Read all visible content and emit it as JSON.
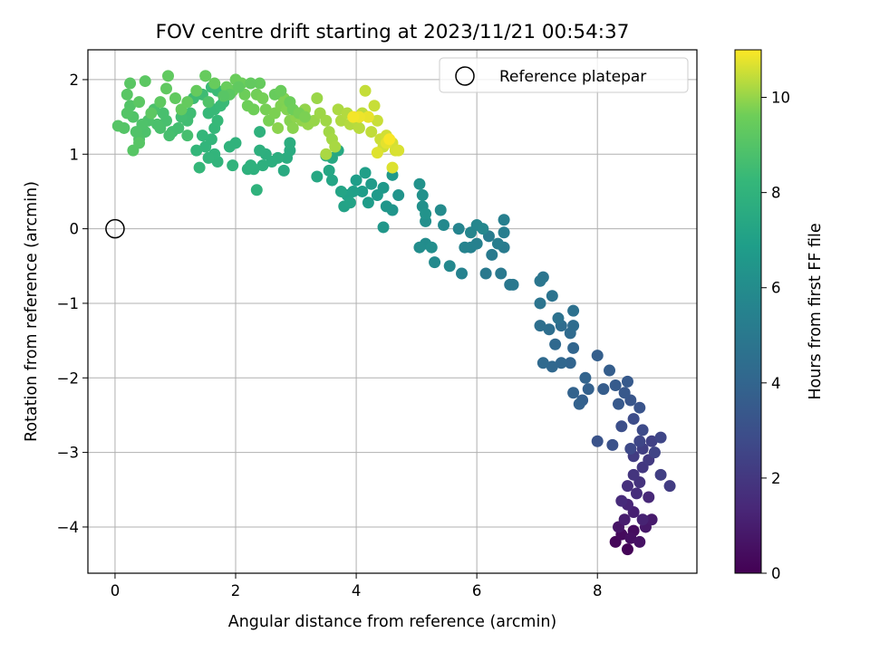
{
  "chart_data": {
    "type": "scatter",
    "title": "FOV centre drift starting at 2023/11/21 00:54:37",
    "xlabel": "Angular distance from reference (arcmin)",
    "ylabel": "Rotation from reference (arcmin)",
    "colorbar_label": "Hours from first FF file",
    "xlim": [
      -0.45,
      9.65
    ],
    "ylim": [
      -4.62,
      2.4
    ],
    "color_range": [
      0,
      11
    ],
    "colormap": "viridis",
    "x_ticks": [
      "0",
      "2",
      "4",
      "6",
      "8"
    ],
    "y_ticks": [
      "2",
      "1",
      "0",
      "−1",
      "−2",
      "−3",
      "−4"
    ],
    "colorbar_ticks": [
      "0",
      "2",
      "4",
      "6",
      "8",
      "10"
    ],
    "grid": true,
    "legend": {
      "position": "top-right",
      "label": "Reference platepar"
    },
    "reference_point": {
      "x": 0,
      "y": 0
    },
    "colors": {
      "grid": "#b0b0b0",
      "axes": "#000000",
      "reference_marker": "#000000"
    },
    "points": [
      [
        8.5,
        -4.3,
        0.1
      ],
      [
        8.3,
        -4.2,
        0.2
      ],
      [
        8.4,
        -4.1,
        0.3
      ],
      [
        8.6,
        -4.05,
        0.4
      ],
      [
        8.55,
        -4.15,
        0.5
      ],
      [
        8.7,
        -4.2,
        0.6
      ],
      [
        8.35,
        -4.0,
        0.7
      ],
      [
        8.8,
        -4.0,
        0.8
      ],
      [
        8.9,
        -3.9,
        0.9
      ],
      [
        8.45,
        -3.9,
        1.0
      ],
      [
        8.6,
        -3.8,
        1.1
      ],
      [
        8.75,
        -3.9,
        1.2
      ],
      [
        8.5,
        -3.7,
        1.3
      ],
      [
        8.85,
        -3.6,
        1.4
      ],
      [
        8.4,
        -3.65,
        1.5
      ],
      [
        8.65,
        -3.55,
        1.6
      ],
      [
        8.5,
        -3.45,
        1.7
      ],
      [
        8.7,
        -3.4,
        1.8
      ],
      [
        8.6,
        -3.3,
        1.9
      ],
      [
        8.75,
        -3.2,
        2.0
      ],
      [
        8.85,
        -3.1,
        2.1
      ],
      [
        8.6,
        -3.05,
        2.2
      ],
      [
        8.75,
        -2.95,
        2.3
      ],
      [
        8.9,
        -2.85,
        2.4
      ],
      [
        9.2,
        -3.45,
        2.2
      ],
      [
        9.05,
        -3.3,
        2.3
      ],
      [
        8.95,
        -3.0,
        2.5
      ],
      [
        8.7,
        -2.85,
        2.6
      ],
      [
        8.55,
        -2.95,
        2.7
      ],
      [
        9.05,
        -2.8,
        2.6
      ],
      [
        8.75,
        -2.7,
        2.8
      ],
      [
        8.6,
        -2.55,
        2.9
      ],
      [
        8.4,
        -2.65,
        3.0
      ],
      [
        8.25,
        -2.9,
        3.1
      ],
      [
        8.0,
        -2.85,
        3.15
      ],
      [
        8.7,
        -2.4,
        3.2
      ],
      [
        8.55,
        -2.3,
        3.3
      ],
      [
        8.45,
        -2.2,
        3.4
      ],
      [
        8.35,
        -2.35,
        3.45
      ],
      [
        8.5,
        -2.05,
        3.5
      ],
      [
        8.3,
        -2.1,
        3.55
      ],
      [
        8.1,
        -2.15,
        3.6
      ],
      [
        8.2,
        -1.9,
        3.65
      ],
      [
        8.0,
        -1.7,
        3.7
      ],
      [
        7.75,
        -2.3,
        3.75
      ],
      [
        7.85,
        -2.15,
        3.8
      ],
      [
        7.7,
        -2.35,
        3.85
      ],
      [
        7.6,
        -2.2,
        3.9
      ],
      [
        7.8,
        -2.0,
        3.95
      ],
      [
        7.55,
        -1.8,
        4.0
      ],
      [
        7.6,
        -1.6,
        4.05
      ],
      [
        7.4,
        -1.8,
        4.1
      ],
      [
        7.25,
        -1.85,
        4.15
      ],
      [
        7.3,
        -1.55,
        4.2
      ],
      [
        7.1,
        -1.8,
        4.25
      ],
      [
        7.55,
        -1.4,
        4.3
      ],
      [
        7.6,
        -1.3,
        4.35
      ],
      [
        7.4,
        -1.3,
        4.4
      ],
      [
        7.2,
        -1.35,
        4.45
      ],
      [
        7.05,
        -1.3,
        4.5
      ],
      [
        7.6,
        -1.1,
        4.6
      ],
      [
        7.35,
        -1.2,
        4.65
      ],
      [
        7.25,
        -0.9,
        4.7
      ],
      [
        7.05,
        -1.0,
        4.75
      ],
      [
        7.1,
        -0.65,
        4.8
      ],
      [
        7.05,
        -0.7,
        4.85
      ],
      [
        6.55,
        -0.75,
        4.9
      ],
      [
        6.6,
        -0.75,
        4.95
      ],
      [
        6.4,
        -0.6,
        5.0
      ],
      [
        6.15,
        -0.6,
        5.05
      ],
      [
        6.25,
        -0.35,
        5.1
      ],
      [
        6.45,
        -0.25,
        5.15
      ],
      [
        6.2,
        -0.1,
        5.2
      ],
      [
        6.35,
        -0.2,
        5.25
      ],
      [
        6.45,
        -0.05,
        5.3
      ],
      [
        6.45,
        0.12,
        5.35
      ],
      [
        6.0,
        -0.2,
        5.4
      ],
      [
        5.9,
        -0.25,
        5.45
      ],
      [
        5.75,
        -0.6,
        5.5
      ],
      [
        5.8,
        -0.25,
        5.55
      ],
      [
        5.7,
        0.0,
        5.6
      ],
      [
        5.9,
        -0.05,
        5.65
      ],
      [
        6.0,
        0.05,
        5.7
      ],
      [
        6.1,
        0.0,
        5.75
      ],
      [
        5.55,
        -0.5,
        5.8
      ],
      [
        5.45,
        0.05,
        5.85
      ],
      [
        5.3,
        -0.45,
        5.9
      ],
      [
        5.4,
        0.25,
        5.95
      ],
      [
        5.15,
        -0.2,
        6.0
      ],
      [
        5.05,
        -0.25,
        6.05
      ],
      [
        5.25,
        -0.25,
        6.1
      ],
      [
        5.15,
        0.1,
        6.15
      ],
      [
        5.1,
        0.3,
        6.2
      ],
      [
        5.1,
        0.45,
        6.25
      ],
      [
        5.05,
        0.6,
        6.3
      ],
      [
        5.15,
        0.2,
        6.35
      ],
      [
        4.7,
        0.45,
        6.4
      ],
      [
        4.6,
        0.25,
        6.45
      ],
      [
        4.5,
        0.3,
        6.5
      ],
      [
        4.45,
        0.02,
        6.55
      ],
      [
        4.6,
        0.72,
        6.6
      ],
      [
        4.45,
        0.55,
        6.65
      ],
      [
        4.35,
        0.45,
        6.7
      ],
      [
        4.25,
        0.6,
        6.75
      ],
      [
        4.2,
        0.35,
        6.8
      ],
      [
        4.1,
        0.5,
        6.85
      ],
      [
        4.0,
        0.65,
        6.9
      ],
      [
        4.15,
        0.75,
        6.95
      ],
      [
        3.95,
        0.5,
        7.0
      ],
      [
        3.85,
        0.45,
        7.05
      ],
      [
        3.8,
        0.3,
        7.1
      ],
      [
        3.9,
        0.35,
        7.15
      ],
      [
        3.75,
        0.5,
        7.2
      ],
      [
        3.6,
        0.65,
        7.25
      ],
      [
        3.55,
        0.78,
        7.3
      ],
      [
        3.35,
        0.7,
        7.35
      ],
      [
        3.7,
        1.05,
        7.4
      ],
      [
        3.6,
        0.95,
        7.45
      ],
      [
        3.5,
        0.98,
        7.5
      ],
      [
        2.8,
        0.78,
        7.55
      ],
      [
        2.9,
        1.05,
        7.6
      ],
      [
        2.85,
        0.95,
        7.65
      ],
      [
        2.9,
        1.15,
        7.7
      ],
      [
        2.7,
        0.95,
        7.72
      ],
      [
        2.6,
        0.9,
        7.75
      ],
      [
        2.5,
        1.0,
        7.78
      ],
      [
        2.4,
        1.05,
        7.8
      ],
      [
        2.45,
        0.85,
        7.82
      ],
      [
        2.3,
        0.8,
        7.85
      ],
      [
        2.2,
        0.8,
        7.88
      ],
      [
        2.25,
        0.85,
        7.9
      ],
      [
        2.4,
        1.3,
        7.92
      ],
      [
        2.35,
        0.52,
        7.95
      ],
      [
        2.0,
        1.15,
        7.98
      ],
      [
        1.9,
        1.1,
        8.0
      ],
      [
        1.95,
        0.85,
        8.02
      ],
      [
        1.7,
        0.9,
        8.05
      ],
      [
        1.65,
        1.0,
        8.08
      ],
      [
        1.55,
        0.95,
        8.1
      ],
      [
        1.5,
        1.1,
        8.12
      ],
      [
        1.6,
        1.2,
        8.15
      ],
      [
        1.45,
        1.25,
        8.18
      ],
      [
        1.35,
        1.05,
        8.2
      ],
      [
        1.4,
        0.82,
        8.22
      ],
      [
        1.65,
        1.35,
        8.25
      ],
      [
        1.7,
        1.45,
        8.28
      ],
      [
        1.55,
        1.55,
        8.3
      ],
      [
        1.65,
        1.6,
        8.32
      ],
      [
        1.75,
        1.65,
        8.35
      ],
      [
        1.8,
        1.7,
        8.38
      ],
      [
        1.7,
        1.85,
        8.4
      ],
      [
        1.6,
        1.9,
        8.42
      ],
      [
        1.5,
        2.05,
        8.45
      ],
      [
        1.45,
        1.8,
        8.48
      ],
      [
        1.3,
        1.75,
        8.5
      ],
      [
        1.25,
        1.55,
        8.52
      ],
      [
        1.2,
        1.45,
        8.55
      ],
      [
        1.1,
        1.5,
        8.58
      ],
      [
        1.05,
        1.35,
        8.6
      ],
      [
        0.95,
        1.3,
        8.62
      ],
      [
        1.2,
        1.25,
        8.65
      ],
      [
        0.9,
        1.25,
        8.68
      ],
      [
        0.85,
        1.45,
        8.7
      ],
      [
        0.8,
        1.55,
        8.72
      ],
      [
        0.75,
        1.35,
        8.75
      ],
      [
        0.7,
        1.4,
        8.78
      ],
      [
        0.65,
        1.6,
        8.8
      ],
      [
        0.55,
        1.45,
        8.82
      ],
      [
        0.5,
        1.3,
        8.85
      ],
      [
        0.45,
        1.4,
        8.88
      ],
      [
        0.4,
        1.2,
        8.9
      ],
      [
        0.35,
        1.3,
        8.92
      ],
      [
        0.3,
        1.5,
        8.95
      ],
      [
        0.25,
        1.65,
        8.98
      ],
      [
        0.2,
        1.55,
        9.0
      ],
      [
        0.15,
        1.35,
        9.02
      ],
      [
        0.05,
        1.38,
        9.05
      ],
      [
        0.3,
        1.05,
        9.08
      ],
      [
        0.4,
        1.15,
        9.1
      ],
      [
        0.2,
        1.8,
        9.12
      ],
      [
        0.25,
        1.95,
        9.15
      ],
      [
        0.4,
        1.7,
        9.18
      ],
      [
        0.5,
        1.98,
        9.2
      ],
      [
        0.6,
        1.55,
        9.22
      ],
      [
        0.75,
        1.7,
        9.25
      ],
      [
        0.85,
        1.88,
        9.28
      ],
      [
        0.88,
        2.05,
        9.3
      ],
      [
        1.0,
        1.75,
        9.32
      ],
      [
        1.1,
        1.6,
        9.35
      ],
      [
        1.2,
        1.7,
        9.38
      ],
      [
        1.35,
        1.85,
        9.4
      ],
      [
        1.5,
        2.05,
        9.42
      ],
      [
        1.65,
        1.95,
        9.45
      ],
      [
        1.85,
        1.9,
        9.48
      ],
      [
        1.95,
        1.85,
        9.5
      ],
      [
        2.0,
        2.0,
        9.52
      ],
      [
        2.1,
        1.95,
        9.55
      ],
      [
        2.15,
        1.8,
        9.58
      ],
      [
        2.2,
        1.65,
        9.6
      ],
      [
        2.3,
        1.6,
        9.62
      ],
      [
        2.35,
        1.8,
        9.65
      ],
      [
        2.45,
        1.75,
        9.68
      ],
      [
        2.5,
        1.6,
        9.7
      ],
      [
        2.55,
        1.45,
        9.72
      ],
      [
        2.65,
        1.55,
        9.75
      ],
      [
        2.75,
        1.65,
        9.78
      ],
      [
        2.8,
        1.75,
        9.8
      ],
      [
        2.85,
        1.6,
        9.82
      ],
      [
        2.9,
        1.45,
        9.85
      ],
      [
        2.95,
        1.35,
        9.88
      ],
      [
        2.7,
        1.35,
        9.9
      ],
      [
        3.0,
        1.5,
        9.92
      ],
      [
        3.1,
        1.45,
        9.95
      ],
      [
        3.15,
        1.6,
        9.98
      ],
      [
        3.2,
        1.4,
        10.0
      ],
      [
        3.3,
        1.45,
        10.02
      ],
      [
        3.35,
        1.75,
        10.05
      ],
      [
        3.4,
        1.55,
        10.08
      ],
      [
        3.5,
        1.45,
        10.1
      ],
      [
        3.55,
        1.3,
        10.12
      ],
      [
        3.6,
        1.2,
        10.15
      ],
      [
        3.65,
        1.1,
        10.18
      ],
      [
        3.5,
        1.0,
        10.2
      ],
      [
        3.7,
        1.6,
        10.22
      ],
      [
        3.75,
        1.45,
        10.25
      ],
      [
        3.85,
        1.55,
        10.28
      ],
      [
        3.9,
        1.4,
        10.3
      ],
      [
        4.0,
        1.45,
        10.32
      ],
      [
        4.05,
        1.35,
        10.35
      ],
      [
        4.1,
        1.55,
        10.38
      ],
      [
        4.2,
        1.5,
        10.4
      ],
      [
        4.25,
        1.3,
        10.42
      ],
      [
        4.15,
        1.85,
        10.45
      ],
      [
        4.3,
        1.65,
        10.48
      ],
      [
        4.35,
        1.45,
        10.5
      ],
      [
        4.4,
        1.2,
        10.52
      ],
      [
        4.45,
        1.1,
        10.55
      ],
      [
        4.5,
        1.25,
        10.58
      ],
      [
        4.6,
        1.15,
        10.6
      ],
      [
        4.65,
        1.05,
        10.62
      ],
      [
        4.7,
        1.05,
        10.65
      ],
      [
        4.6,
        0.82,
        10.68
      ],
      [
        4.35,
        1.02,
        10.7
      ],
      [
        4.5,
        1.15,
        10.75
      ],
      [
        4.2,
        1.5,
        10.8
      ],
      [
        4.05,
        1.5,
        10.85
      ],
      [
        3.95,
        1.5,
        10.9
      ],
      [
        4.55,
        1.2,
        10.95
      ],
      [
        2.9,
        1.7,
        9.55
      ],
      [
        2.95,
        1.6,
        9.6
      ],
      [
        3.05,
        1.55,
        9.7
      ],
      [
        3.15,
        1.5,
        9.75
      ],
      [
        2.65,
        1.8,
        9.45
      ],
      [
        2.75,
        1.85,
        9.5
      ],
      [
        2.4,
        1.95,
        9.4
      ],
      [
        2.25,
        1.95,
        9.35
      ],
      [
        2.05,
        1.9,
        9.3
      ],
      [
        1.9,
        1.8,
        9.2
      ],
      [
        1.8,
        1.78,
        9.1
      ],
      [
        1.55,
        1.7,
        8.9
      ]
    ]
  }
}
